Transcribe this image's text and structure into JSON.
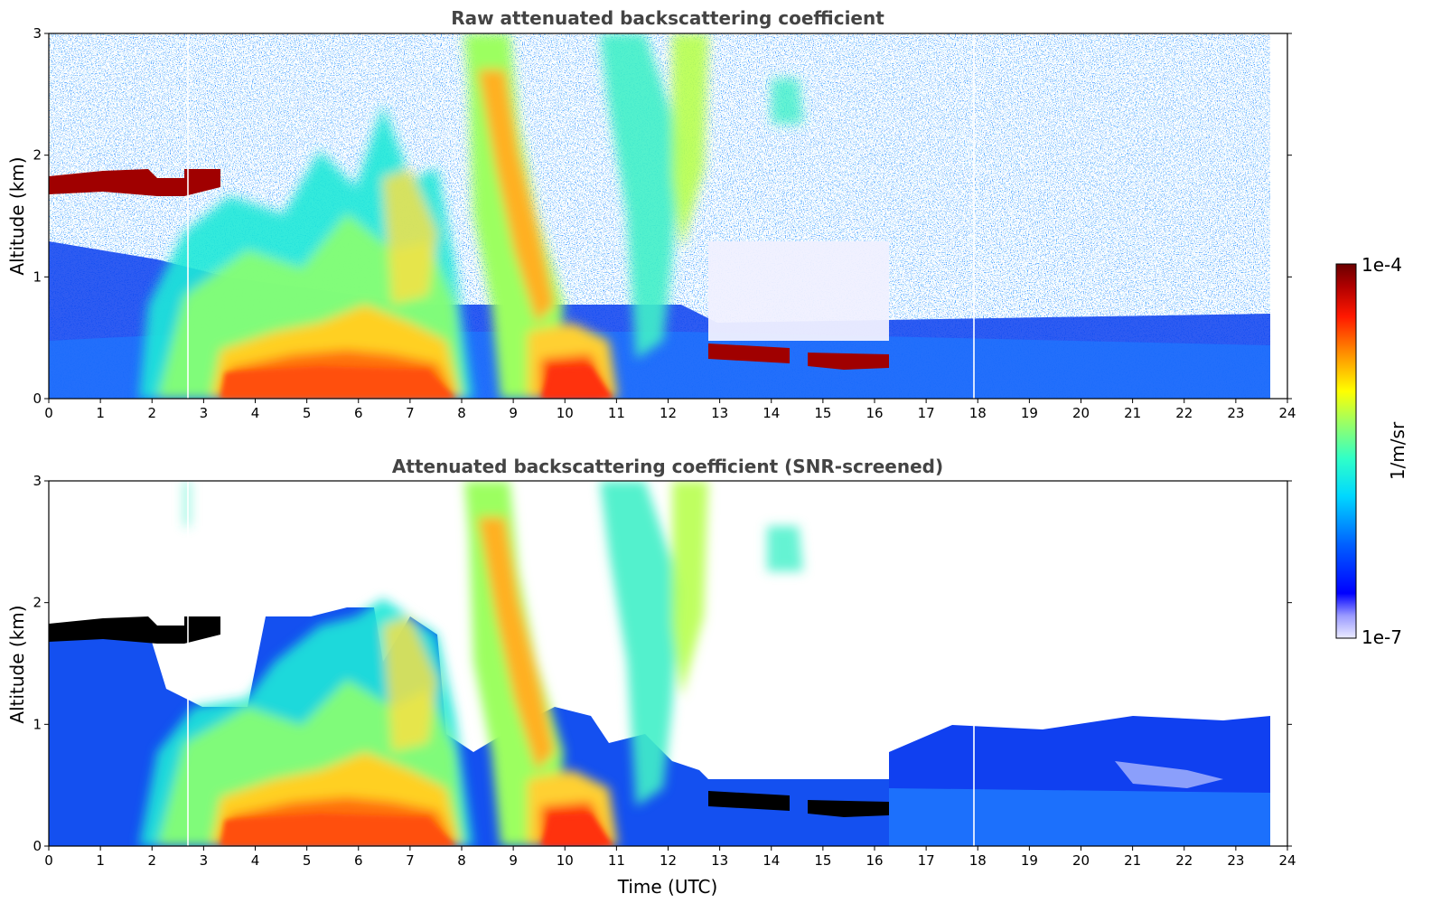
{
  "figure": {
    "xlabel": "Time (UTC)",
    "colorbar": {
      "label": "1/m/sr",
      "max_label": "1e-4",
      "min_label": "1e-7",
      "scale": "log",
      "range": [
        1e-07,
        0.0001
      ]
    }
  },
  "panels": [
    {
      "title": "Raw attenuated backscattering coefficient",
      "ylabel": "Altitude (km)"
    },
    {
      "title": "Attenuated backscattering coefficient (SNR-screened)",
      "ylabel": "Altitude (km)"
    }
  ],
  "axes": {
    "x_ticks": [
      "0",
      "1",
      "2",
      "3",
      "4",
      "5",
      "6",
      "7",
      "8",
      "9",
      "10",
      "11",
      "12",
      "13",
      "14",
      "15",
      "16",
      "17",
      "18",
      "19",
      "20",
      "21",
      "22",
      "23",
      "24"
    ],
    "y_ticks": [
      "0",
      "1",
      "2",
      "3"
    ],
    "xlim": [
      0,
      24
    ],
    "ylim": [
      0,
      3
    ]
  },
  "chart_data": [
    {
      "type": "heatmap",
      "title": "Raw attenuated backscattering coefficient",
      "xlabel": "",
      "ylabel": "Altitude (km)",
      "xlim": [
        0,
        24
      ],
      "ylim": [
        0,
        3
      ],
      "data_end_time": 23.7,
      "colorscale": "jet",
      "color_scale_type": "log",
      "zlim": [
        1e-07,
        0.0001
      ],
      "zunit": "1/m/sr",
      "features": [
        {
          "name": "cloud layer",
          "t": [
            0,
            3.3
          ],
          "alt": [
            1.65,
            1.85
          ],
          "level": "1e-4"
        },
        {
          "name": "dense boundary-layer aerosol",
          "t": [
            3.3,
            8.0
          ],
          "alt": [
            0,
            0.35
          ],
          "level": "~3e-5"
        },
        {
          "name": "aerosol plume",
          "t": [
            8.0,
            9.8
          ],
          "alt": [
            0.8,
            3.0
          ],
          "level": "~2e-5"
        },
        {
          "name": "dense aerosol",
          "t": [
            9.5,
            11.0
          ],
          "alt": [
            0,
            0.3
          ],
          "level": "~4e-5"
        },
        {
          "name": "low cloud",
          "t": [
            12.8,
            14.4
          ],
          "alt": [
            0.3,
            0.45
          ],
          "level": "1e-4"
        },
        {
          "name": "low cloud",
          "t": [
            14.7,
            16.3
          ],
          "alt": [
            0.25,
            0.4
          ],
          "level": "1e-4"
        },
        {
          "name": "clear-air background",
          "t": [
            16.3,
            23.7
          ],
          "alt": [
            0,
            0.6
          ],
          "level": "~1e-6"
        }
      ]
    },
    {
      "type": "heatmap",
      "title": "Attenuated backscattering coefficient (SNR-screened)",
      "xlabel": "Time (UTC)",
      "ylabel": "Altitude (km)",
      "xlim": [
        0,
        24
      ],
      "ylim": [
        0,
        3
      ],
      "data_end_time": 23.7,
      "colorscale": "jet",
      "color_scale_type": "log",
      "zlim": [
        1e-07,
        0.0001
      ],
      "zunit": "1/m/sr",
      "screened_colors": {
        "saturated": "#000000",
        "no_signal": "#ffffff"
      },
      "features": [
        {
          "name": "cloud layer (saturated)",
          "t": [
            0,
            3.3
          ],
          "alt": [
            1.65,
            1.85
          ],
          "level": "saturated"
        },
        {
          "name": "dense boundary-layer aerosol",
          "t": [
            3.3,
            8.0
          ],
          "alt": [
            0,
            0.35
          ],
          "level": "~3e-5"
        },
        {
          "name": "aerosol plume",
          "t": [
            8.0,
            9.8
          ],
          "alt": [
            0.8,
            3.0
          ],
          "level": "~2e-5"
        },
        {
          "name": "dense aerosol",
          "t": [
            9.5,
            11.0
          ],
          "alt": [
            0,
            0.3
          ],
          "level": "~4e-5"
        },
        {
          "name": "low cloud (saturated)",
          "t": [
            12.8,
            14.4
          ],
          "alt": [
            0.3,
            0.45
          ],
          "level": "saturated"
        },
        {
          "name": "low cloud (saturated)",
          "t": [
            14.7,
            16.3
          ],
          "alt": [
            0.25,
            0.4
          ],
          "level": "saturated"
        },
        {
          "name": "boundary-layer background",
          "t": [
            16.3,
            23.7
          ],
          "alt": [
            0,
            1.0
          ],
          "level": "~1e-6"
        }
      ]
    }
  ]
}
